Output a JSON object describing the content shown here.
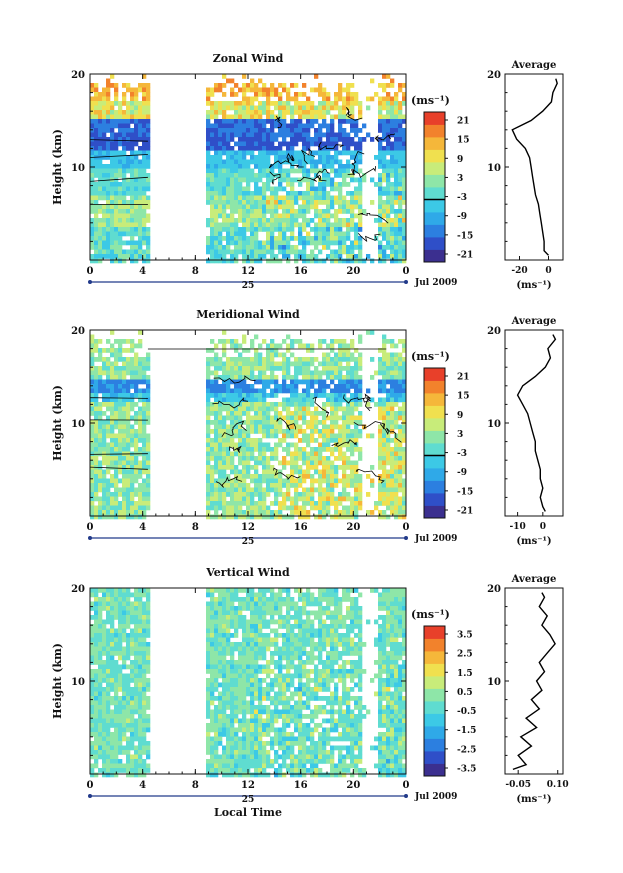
{
  "colors": {
    "scale": [
      "#3b2f8f",
      "#2f4fc8",
      "#2c7fe0",
      "#2fa9e8",
      "#3cc9e6",
      "#5fdcd0",
      "#8ee6a8",
      "#c8ec7a",
      "#f0e04f",
      "#f5b73a",
      "#f2822c",
      "#e8402a"
    ],
    "contour": "#000000",
    "axis": "#111111"
  },
  "shared": {
    "x_ticks": [
      "0",
      "4",
      "8",
      "12",
      "16",
      "20",
      "0"
    ],
    "x_values": [
      0,
      4,
      8,
      12,
      16,
      20,
      24
    ],
    "date_marker": "25",
    "date_caption": "Jul 2009",
    "xlabel": "Local Time",
    "ylabel": "Height (km)",
    "y_ticks": [
      "10",
      "20"
    ],
    "data_gap_hours": [
      4.5,
      8.7
    ]
  },
  "chart_data": [
    {
      "type": "heatmap",
      "title": "Zonal Wind",
      "xlabel": "",
      "ylabel": "Height (km)",
      "xlim": [
        0,
        24
      ],
      "ylim": [
        0,
        20
      ],
      "colorbar_unit": "(ms⁻¹)",
      "colorbar_ticks": [
        "21",
        "15",
        "9",
        "3",
        "-3",
        "-9",
        "-15",
        "-21"
      ],
      "colorbar_values": [
        21,
        15,
        9,
        3,
        -3,
        -9,
        -15,
        -21
      ],
      "average": {
        "title": "Average",
        "xticks": [
          "-20",
          "0"
        ],
        "xtick_values": [
          -20,
          0
        ],
        "xlim": [
          -30,
          10
        ],
        "xlabel": "(ms⁻¹)",
        "heights": [
          0.5,
          1,
          2,
          3,
          4,
          5,
          6,
          7,
          8,
          9,
          10,
          11,
          12,
          13,
          14,
          15,
          16,
          17,
          18,
          19,
          19.5
        ],
        "values": [
          0,
          -3,
          -3,
          -4,
          -5,
          -6,
          -7,
          -9,
          -10,
          -11,
          -12,
          -13,
          -16,
          -22,
          -25,
          -12,
          -4,
          2,
          3,
          6,
          5
        ]
      }
    },
    {
      "type": "heatmap",
      "title": "Meridional Wind",
      "xlabel": "",
      "ylabel": "Height (km)",
      "xlim": [
        0,
        24
      ],
      "ylim": [
        0,
        20
      ],
      "colorbar_unit": "(ms⁻¹)",
      "colorbar_ticks": [
        "21",
        "15",
        "9",
        "3",
        "-3",
        "-9",
        "-15",
        "-21"
      ],
      "colorbar_values": [
        21,
        15,
        9,
        3,
        -3,
        -9,
        -15,
        -21
      ],
      "average": {
        "title": "Average",
        "xticks": [
          "-10",
          "0"
        ],
        "xtick_values": [
          -10,
          0
        ],
        "xlim": [
          -15,
          8
        ],
        "xlabel": "(ms⁻¹)",
        "heights": [
          0.5,
          1,
          2,
          3,
          4,
          5,
          6,
          7,
          8,
          9,
          10,
          11,
          12,
          13,
          14,
          15,
          16,
          17,
          18,
          19,
          19.5
        ],
        "values": [
          1,
          0,
          -1,
          0,
          -1,
          -1,
          -2,
          -3,
          -3,
          -4,
          -5,
          -6,
          -8,
          -10,
          -8,
          -3,
          1,
          3,
          2,
          5,
          4
        ]
      }
    },
    {
      "type": "heatmap",
      "title": "Vertical Wind",
      "xlabel": "Local Time",
      "ylabel": "Height (km)",
      "xlim": [
        0,
        24
      ],
      "ylim": [
        0,
        20
      ],
      "colorbar_unit": "(ms⁻¹)",
      "colorbar_ticks": [
        "3.5",
        "2.5",
        "1.5",
        "0.5",
        "-0.5",
        "-1.5",
        "-2.5",
        "-3.5"
      ],
      "colorbar_values": [
        3.5,
        2.5,
        1.5,
        0.5,
        -0.5,
        -1.5,
        -2.5,
        -3.5
      ],
      "average": {
        "title": "Average",
        "xticks": [
          "-0.05",
          "0.10"
        ],
        "xtick_values": [
          -0.05,
          0.1
        ],
        "xlim": [
          -0.1,
          0.12
        ],
        "xlabel": "(ms⁻¹)",
        "heights": [
          0.5,
          1,
          2,
          3,
          4,
          5,
          6,
          7,
          8,
          9,
          10,
          11,
          12,
          13,
          14,
          15,
          16,
          17,
          18,
          19,
          19.5
        ],
        "values": [
          -0.07,
          -0.02,
          -0.05,
          0.0,
          -0.04,
          0.02,
          -0.02,
          0.03,
          0.0,
          0.04,
          0.02,
          0.05,
          0.03,
          0.06,
          0.09,
          0.07,
          0.04,
          0.06,
          0.03,
          0.05,
          0.04
        ]
      }
    }
  ]
}
